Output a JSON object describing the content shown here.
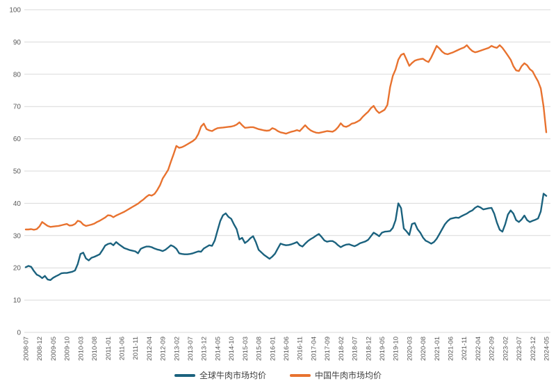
{
  "chart": {
    "background": "#ffffff",
    "grid_color": "#d9d9d9",
    "axis_label_color": "#595959",
    "legend_text_color": "#404040"
  },
  "chart_data": {
    "type": "line",
    "title": "",
    "xlabel": "",
    "ylabel": "",
    "ylim": [
      0,
      100
    ],
    "y_ticks": [
      0,
      10,
      20,
      30,
      40,
      50,
      60,
      70,
      80,
      90,
      100
    ],
    "grid": "horizontal-only",
    "legend_position": "bottom-center",
    "n_points": 191,
    "x_start": "2008-07",
    "x_end": "2024-05",
    "x_tick_step": 5,
    "x_tick_labels": [
      "2008-07",
      "2008-12",
      "2009-05",
      "2009-10",
      "2010-03",
      "2010-08",
      "2011-01",
      "2011-06",
      "2011-11",
      "2012-04",
      "2012-09",
      "2013-02",
      "2013-07",
      "2013-12",
      "2014-05",
      "2014-10",
      "2015-03",
      "2015-08",
      "2016-01",
      "2016-06",
      "2016-11",
      "2017-04",
      "2017-09",
      "2018-02",
      "2018-07",
      "2018-12",
      "2019-05",
      "2019-10",
      "2020-03",
      "2020-08",
      "2021-01",
      "2021-06",
      "2021-11",
      "2022-04",
      "2022-09",
      "2023-02",
      "2023-07",
      "2023-12",
      "2024-05"
    ],
    "series": [
      {
        "name": "全球牛肉市场均价",
        "color": "#1B627E",
        "values": [
          20.2,
          20.6,
          20.3,
          19.0,
          17.9,
          17.5,
          16.8,
          17.5,
          16.4,
          16.2,
          16.9,
          17.4,
          17.8,
          18.3,
          18.4,
          18.4,
          18.6,
          18.8,
          19.2,
          21.2,
          24.3,
          24.7,
          22.9,
          22.3,
          23.1,
          23.4,
          23.8,
          24.2,
          25.5,
          26.9,
          27.4,
          27.6,
          27.0,
          28.0,
          27.3,
          26.7,
          26.1,
          25.8,
          25.5,
          25.3,
          25.1,
          24.5,
          25.9,
          26.3,
          26.6,
          26.6,
          26.4,
          26.0,
          25.7,
          25.5,
          25.2,
          25.6,
          26.3,
          27.0,
          26.6,
          25.9,
          24.5,
          24.3,
          24.2,
          24.2,
          24.3,
          24.5,
          24.8,
          25.1,
          25.0,
          26.0,
          26.5,
          27.0,
          26.8,
          28.5,
          31.5,
          34.5,
          36.3,
          36.9,
          35.8,
          35.2,
          33.5,
          32.0,
          28.8,
          29.3,
          27.7,
          28.3,
          29.2,
          29.8,
          28.0,
          25.6,
          24.8,
          24.0,
          23.4,
          22.8,
          23.5,
          24.4,
          26.0,
          27.5,
          27.2,
          27.0,
          27.1,
          27.3,
          27.6,
          28.0,
          27.0,
          26.6,
          27.5,
          28.3,
          28.9,
          29.4,
          30.0,
          30.5,
          29.6,
          28.5,
          28.1,
          28.3,
          28.3,
          27.8,
          27.0,
          26.4,
          26.9,
          27.2,
          27.3,
          27.0,
          26.7,
          27.1,
          27.6,
          27.9,
          28.2,
          28.7,
          29.8,
          30.9,
          30.4,
          29.8,
          30.9,
          31.2,
          31.3,
          31.4,
          32.4,
          34.8,
          40.0,
          38.5,
          32.2,
          31.3,
          30.2,
          33.6,
          33.9,
          32.0,
          30.9,
          29.4,
          28.4,
          28.0,
          27.5,
          28.0,
          29.0,
          30.5,
          32.0,
          33.5,
          34.5,
          35.2,
          35.4,
          35.6,
          35.5,
          36.0,
          36.4,
          36.8,
          37.4,
          37.8,
          38.6,
          39.1,
          38.7,
          38.1,
          38.3,
          38.5,
          38.6,
          36.8,
          34.0,
          31.8,
          31.2,
          33.5,
          36.5,
          37.8,
          36.8,
          34.8,
          34.2,
          35.0,
          36.2,
          34.8,
          34.2,
          34.6,
          34.9,
          35.3,
          37.5,
          43.0,
          42.3
        ]
      },
      {
        "name": "中国牛肉市场均价",
        "color": "#E8722F",
        "values": [
          31.9,
          31.9,
          32.0,
          31.8,
          32.0,
          32.8,
          34.2,
          33.6,
          33.0,
          32.7,
          32.8,
          32.9,
          33.0,
          33.2,
          33.4,
          33.6,
          33.1,
          33.2,
          33.6,
          34.6,
          34.3,
          33.4,
          33.0,
          33.2,
          33.4,
          33.7,
          34.2,
          34.6,
          35.1,
          35.6,
          36.3,
          36.2,
          35.7,
          36.2,
          36.6,
          37.0,
          37.4,
          37.9,
          38.4,
          38.9,
          39.4,
          39.9,
          40.6,
          41.2,
          42.0,
          42.6,
          42.4,
          42.9,
          44.1,
          45.6,
          47.7,
          49.0,
          50.4,
          52.9,
          55.3,
          57.8,
          57.2,
          57.4,
          57.8,
          58.3,
          58.8,
          59.3,
          60.0,
          61.5,
          63.8,
          64.7,
          63.0,
          62.6,
          62.4,
          62.9,
          63.3,
          63.4,
          63.5,
          63.6,
          63.7,
          63.8,
          64.0,
          64.4,
          65.1,
          64.2,
          63.4,
          63.5,
          63.6,
          63.6,
          63.3,
          63.0,
          62.8,
          62.6,
          62.5,
          62.6,
          63.3,
          63.0,
          62.4,
          62.0,
          61.8,
          61.6,
          61.9,
          62.2,
          62.4,
          62.7,
          62.4,
          63.3,
          64.2,
          63.3,
          62.6,
          62.2,
          61.9,
          61.8,
          62.0,
          62.2,
          62.4,
          62.3,
          62.2,
          62.7,
          63.6,
          64.8,
          63.9,
          63.7,
          64.1,
          64.7,
          64.9,
          65.3,
          65.8,
          66.8,
          67.6,
          68.4,
          69.5,
          70.2,
          68.8,
          68.0,
          68.5,
          69.0,
          70.5,
          76.0,
          79.5,
          81.5,
          84.5,
          86.0,
          86.4,
          84.5,
          82.6,
          83.5,
          84.2,
          84.5,
          84.7,
          84.8,
          84.2,
          83.8,
          85.2,
          87.0,
          88.8,
          88.0,
          87.0,
          86.4,
          86.2,
          86.5,
          86.8,
          87.2,
          87.6,
          88.0,
          88.3,
          89.0,
          88.0,
          87.2,
          86.8,
          87.0,
          87.3,
          87.6,
          87.9,
          88.2,
          88.8,
          88.4,
          88.2,
          89.0,
          88.2,
          87.0,
          85.8,
          84.5,
          82.5,
          81.2,
          81.0,
          82.5,
          83.4,
          82.8,
          81.6,
          80.9,
          79.3,
          77.8,
          75.6,
          70.0,
          62.0
        ]
      }
    ]
  }
}
